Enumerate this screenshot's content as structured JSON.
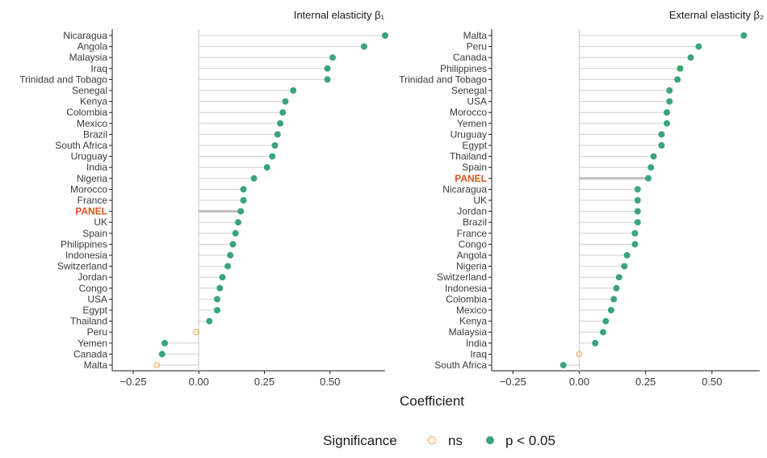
{
  "chart_data": [
    {
      "type": "lollipop",
      "title": "Internal elasticity β₁",
      "xlim": [
        -0.33,
        0.71
      ],
      "xticks": [
        -0.25,
        0.0,
        0.25,
        0.5
      ],
      "xtick_labels": [
        "−0.25",
        "0.00",
        "0.25",
        "0.50"
      ],
      "highlight": "PANEL",
      "categories": [
        "Nicaragua",
        "Angola",
        "Malaysia",
        "Iraq",
        "Trinidad and Tobago",
        "Senegal",
        "Kenya",
        "Colombia",
        "Mexico",
        "Brazil",
        "South Africa",
        "Uruguay",
        "India",
        "Nigeria",
        "Morocco",
        "France",
        "PANEL",
        "UK",
        "Spain",
        "Philippines",
        "Indonesia",
        "Switzerland",
        "Jordan",
        "Congo",
        "USA",
        "Egypt",
        "Thailand",
        "Peru",
        "Yemen",
        "Canada",
        "Malta"
      ],
      "values": [
        0.71,
        0.63,
        0.51,
        0.49,
        0.49,
        0.36,
        0.33,
        0.32,
        0.31,
        0.3,
        0.29,
        0.28,
        0.26,
        0.21,
        0.17,
        0.17,
        0.16,
        0.15,
        0.14,
        0.13,
        0.12,
        0.11,
        0.09,
        0.08,
        0.07,
        0.07,
        0.04,
        -0.01,
        -0.13,
        -0.14,
        -0.16
      ],
      "significant": [
        true,
        true,
        true,
        true,
        true,
        true,
        true,
        true,
        true,
        true,
        true,
        true,
        true,
        true,
        true,
        true,
        true,
        true,
        true,
        true,
        true,
        true,
        true,
        true,
        true,
        true,
        true,
        false,
        true,
        true,
        false
      ]
    },
    {
      "type": "lollipop",
      "title": "External elasticity β₂",
      "xlim": [
        -0.33,
        0.68
      ],
      "xticks": [
        -0.25,
        0.0,
        0.25,
        0.5
      ],
      "xtick_labels": [
        "−0.25",
        "0.00",
        "0.25",
        "0.50"
      ],
      "highlight": "PANEL",
      "categories": [
        "Malta",
        "Peru",
        "Canada",
        "Philippines",
        "Trinidad and Tobago",
        "Senegal",
        "USA",
        "Morocco",
        "Yemen",
        "Uruguay",
        "Egypt",
        "Thailand",
        "Spain",
        "PANEL",
        "Nicaragua",
        "UK",
        "Jordan",
        "Brazil",
        "France",
        "Congo",
        "Angola",
        "Nigeria",
        "Switzerland",
        "Indonesia",
        "Colombia",
        "Mexico",
        "Kenya",
        "Malaysia",
        "India",
        "Iraq",
        "South Africa"
      ],
      "values": [
        0.62,
        0.45,
        0.42,
        0.38,
        0.37,
        0.34,
        0.34,
        0.33,
        0.33,
        0.31,
        0.31,
        0.28,
        0.27,
        0.26,
        0.22,
        0.22,
        0.22,
        0.22,
        0.21,
        0.21,
        0.18,
        0.17,
        0.15,
        0.14,
        0.13,
        0.12,
        0.1,
        0.09,
        0.06,
        0.0,
        -0.06
      ],
      "significant": [
        true,
        true,
        true,
        true,
        true,
        true,
        true,
        true,
        true,
        true,
        true,
        true,
        true,
        true,
        true,
        true,
        true,
        true,
        true,
        true,
        true,
        true,
        true,
        true,
        true,
        true,
        true,
        true,
        true,
        false,
        true
      ]
    }
  ],
  "axis": {
    "xlabel": "Coefficient"
  },
  "legend": {
    "title": "Significance",
    "items": [
      {
        "label": "ns",
        "style": "open",
        "color": "#f0a64f"
      },
      {
        "label": "p < 0.05",
        "style": "filled",
        "color": "#3aa57a"
      }
    ]
  },
  "colors": {
    "significant": "#3aa57a",
    "not_significant": "#f0a64f",
    "highlight_label": "#d9531e",
    "zero_line": "#d6d6d6",
    "stem": "#cfcfcf",
    "panel_stem": "#bdbdbd"
  }
}
